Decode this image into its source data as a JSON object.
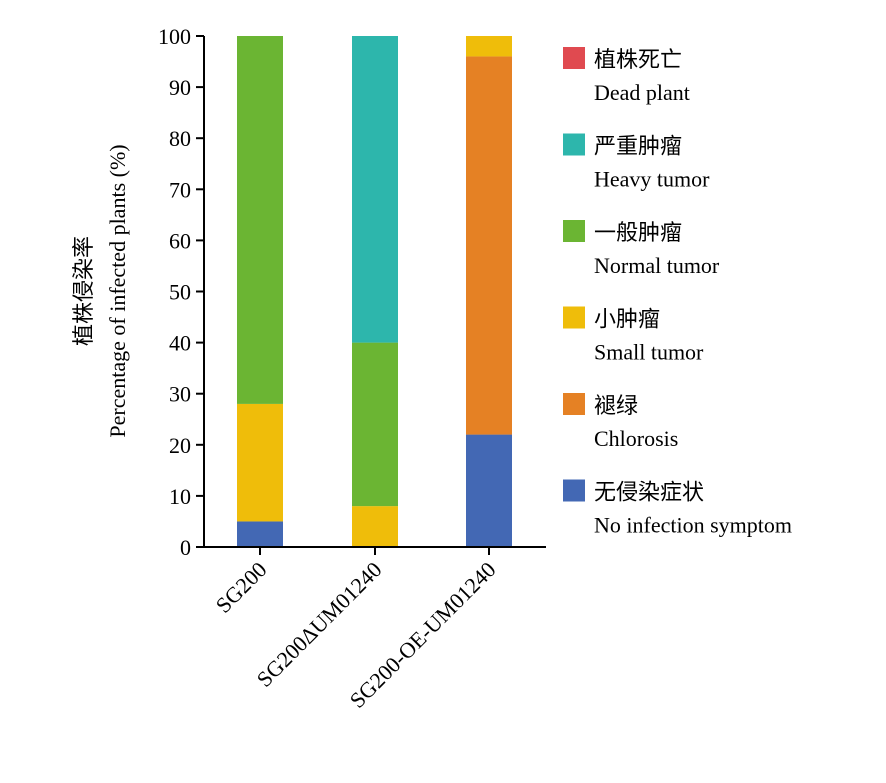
{
  "chart_data": {
    "type": "bar",
    "stacked": true,
    "title": "",
    "xlabel": "",
    "ylabel_cn": "植株侵染率",
    "ylabel": "Percentage of infected plants (%)",
    "ylim": [
      0,
      100
    ],
    "yticks": [
      0,
      10,
      20,
      30,
      40,
      50,
      60,
      70,
      80,
      90,
      100
    ],
    "grid": false,
    "legend_position": "right",
    "categories": [
      "SG200",
      "SG200ΔUM01240",
      "SG200-OE-UM01240"
    ],
    "series": [
      {
        "name_cn": "无侵染症状",
        "name": "No infection symptom",
        "color": "#4368b4",
        "values": [
          5,
          0,
          22
        ]
      },
      {
        "name_cn": "褪绿",
        "name": "Chlorosis",
        "color": "#e58124",
        "values": [
          0,
          0,
          74
        ]
      },
      {
        "name_cn": "小肿瘤",
        "name": "Small tumor",
        "color": "#efbd0a",
        "values": [
          23,
          8,
          4
        ]
      },
      {
        "name_cn": "一般肿瘤",
        "name": "Normal tumor",
        "color": "#6bb533",
        "values": [
          72,
          32,
          0
        ]
      },
      {
        "name_cn": "严重肿瘤",
        "name": "Heavy tumor",
        "color": "#2db6ac",
        "values": [
          0,
          60,
          0
        ]
      },
      {
        "name_cn": "植株死亡",
        "name": "Dead plant",
        "color": "#e04a50",
        "values": [
          0,
          0,
          0
        ]
      }
    ],
    "legend_order": [
      "Dead plant",
      "Heavy tumor",
      "Normal tumor",
      "Small tumor",
      "Chlorosis",
      "No infection symptom"
    ]
  }
}
